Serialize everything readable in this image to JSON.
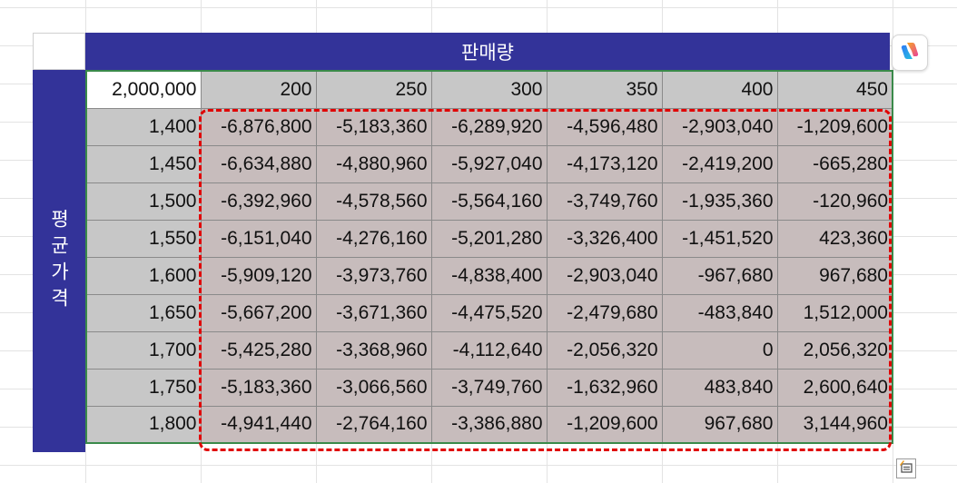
{
  "sheet": {
    "header_label": "판매량",
    "side_label": "평균가격",
    "origin_value": "2,000,000",
    "column_headers": [
      "200",
      "250",
      "300",
      "350",
      "400",
      "450"
    ],
    "rows": [
      {
        "price": "1,400",
        "values": [
          "-6,876,800",
          "-5,183,360",
          "-6,289,920",
          "-4,596,480",
          "-2,903,040",
          "-1,209,600"
        ]
      },
      {
        "price": "1,450",
        "values": [
          "-6,634,880",
          "-4,880,960",
          "-5,927,040",
          "-4,173,120",
          "-2,419,200",
          "-665,280"
        ]
      },
      {
        "price": "1,500",
        "values": [
          "-6,392,960",
          "-4,578,560",
          "-5,564,160",
          "-3,749,760",
          "-1,935,360",
          "-120,960"
        ]
      },
      {
        "price": "1,550",
        "values": [
          "-6,151,040",
          "-4,276,160",
          "-5,201,280",
          "-3,326,400",
          "-1,451,520",
          "423,360"
        ]
      },
      {
        "price": "1,600",
        "values": [
          "-5,909,120",
          "-3,973,760",
          "-4,838,400",
          "-2,903,040",
          "-967,680",
          "967,680"
        ]
      },
      {
        "price": "1,650",
        "values": [
          "-5,667,200",
          "-3,671,360",
          "-4,475,520",
          "-2,479,680",
          "-483,840",
          "1,512,000"
        ]
      },
      {
        "price": "1,700",
        "values": [
          "-5,425,280",
          "-3,368,960",
          "-4,112,640",
          "-2,056,320",
          "0",
          "2,056,320"
        ]
      },
      {
        "price": "1,750",
        "values": [
          "-5,183,360",
          "-3,066,560",
          "-3,749,760",
          "-1,632,960",
          "483,840",
          "2,600,640"
        ]
      },
      {
        "price": "1,800",
        "values": [
          "-4,941,440",
          "-2,764,160",
          "-3,386,880",
          "-1,209,600",
          "967,680",
          "3,144,960"
        ]
      }
    ]
  },
  "colors": {
    "header_bg": "#333399",
    "header_cell_bg": "#c7c7c7",
    "value_cell_bg": "#c7bcbc",
    "selection_border": "#e00000"
  },
  "icons": {
    "copilot": "copilot-icon",
    "quick_analysis": "quick-analysis-icon"
  }
}
